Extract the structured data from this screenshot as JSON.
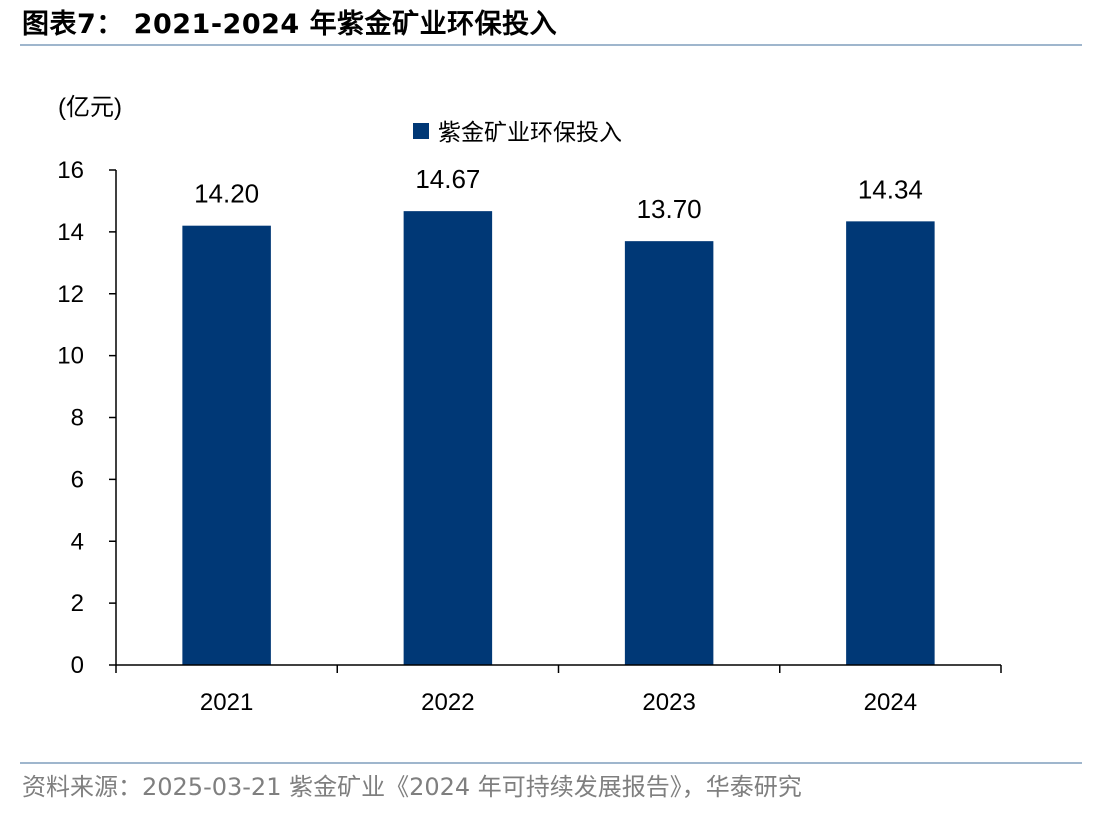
{
  "figure": {
    "title": "图表7： 2021-2024 年紫金矿业环保投入",
    "source": "资料来源：2025-03-21 紫金矿业《2024 年可持续发展报告》，华泰研究"
  },
  "chart_data": {
    "type": "bar",
    "categories": [
      "2021",
      "2022",
      "2023",
      "2024"
    ],
    "series": [
      {
        "name": "紫金矿业环保投入",
        "values": [
          14.2,
          14.67,
          13.7,
          14.34
        ],
        "labels": [
          "14.20",
          "14.67",
          "13.70",
          "14.34"
        ],
        "color": "#003876"
      }
    ],
    "ylabel": "(亿元)",
    "ylim": [
      0,
      16
    ],
    "yticks": [
      0,
      2,
      4,
      6,
      8,
      10,
      12,
      14,
      16
    ],
    "grid": false,
    "legend_position": "top-center"
  }
}
